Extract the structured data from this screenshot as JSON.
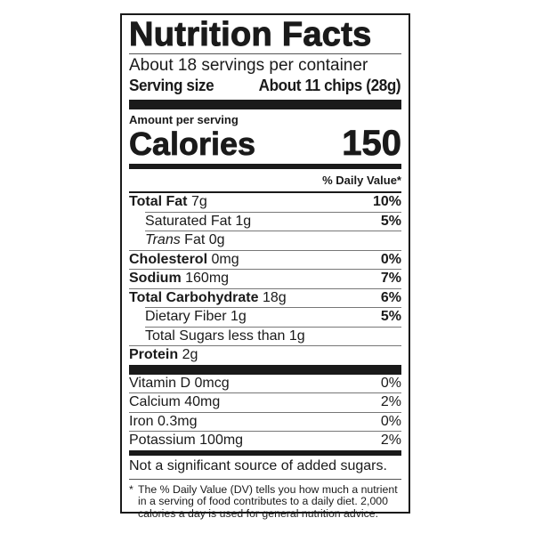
{
  "title": "Nutrition Facts",
  "servings_per_container": "About 18 servings per container",
  "serving_size": {
    "label": "Serving size",
    "value": "About 11 chips (28g)"
  },
  "amount_per_serving": "Amount per serving",
  "calories": {
    "label": "Calories",
    "value": "150"
  },
  "daily_value_header": "% Daily Value*",
  "nutrients": [
    {
      "name": "Total Fat",
      "amount": "7g",
      "dv": "10%"
    },
    {
      "name": "Saturated Fat",
      "amount": "1g",
      "dv": "5%"
    },
    {
      "name": "Trans",
      "name_suffix": "Fat",
      "amount": "0g",
      "dv": ""
    },
    {
      "name": "Cholesterol",
      "amount": "0mg",
      "dv": "0%"
    },
    {
      "name": "Sodium",
      "amount": "160mg",
      "dv": "7%"
    },
    {
      "name": "Total Carbohydrate",
      "amount": "18g",
      "dv": "6%"
    },
    {
      "name": "Dietary Fiber",
      "amount": "1g",
      "dv": "5%"
    },
    {
      "name": "Total Sugars less than",
      "amount": "1g",
      "dv": ""
    },
    {
      "name": "Protein",
      "amount": "2g",
      "dv": ""
    }
  ],
  "vitamins": [
    {
      "name": "Vitamin D",
      "amount": "0mcg",
      "dv": "0%"
    },
    {
      "name": "Calcium",
      "amount": "40mg",
      "dv": "2%"
    },
    {
      "name": "Iron",
      "amount": "0.3mg",
      "dv": "0%"
    },
    {
      "name": "Potassium",
      "amount": "100mg",
      "dv": "2%"
    }
  ],
  "added_sugars_note": "Not a significant source of added sugars.",
  "footnote": {
    "mark": "*",
    "text": "The % Daily Value (DV) tells you how much a nutrient in a serving of food contributes to a daily diet. 2,000 calories a day is used for general nutrition advice."
  }
}
